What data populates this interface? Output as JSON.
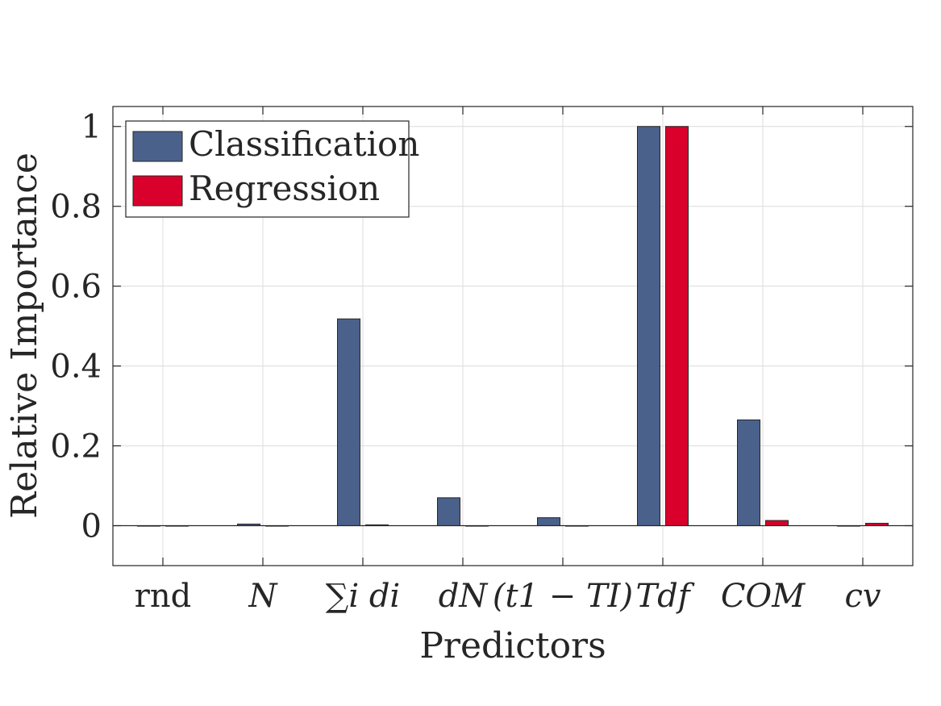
{
  "chart_data": {
    "type": "bar",
    "xlabel": "Predictors",
    "ylabel": "Relative Importance",
    "categories": [
      "rnd",
      "N",
      "∑i di",
      "dN",
      "(t1 − TI)",
      "Tdf",
      "COM",
      "cv"
    ],
    "series": [
      {
        "name": "Classification",
        "color": "#4a618b",
        "values": [
          0,
          0.004,
          0.518,
          0.07,
          0.02,
          1.0,
          0.265,
          0
        ]
      },
      {
        "name": "Regression",
        "color": "#d9002b",
        "values": [
          0,
          0,
          0.002,
          0,
          0,
          1.0,
          0.013,
          0.006
        ]
      }
    ],
    "ylim": [
      -0.1,
      1.05
    ],
    "yticks": [
      0,
      0.2,
      0.4,
      0.6,
      0.8,
      1
    ],
    "ytick_labels": [
      "0",
      "0.2",
      "0.4",
      "0.6",
      "0.8",
      "1"
    ],
    "grid": true,
    "legend": "top-left"
  }
}
